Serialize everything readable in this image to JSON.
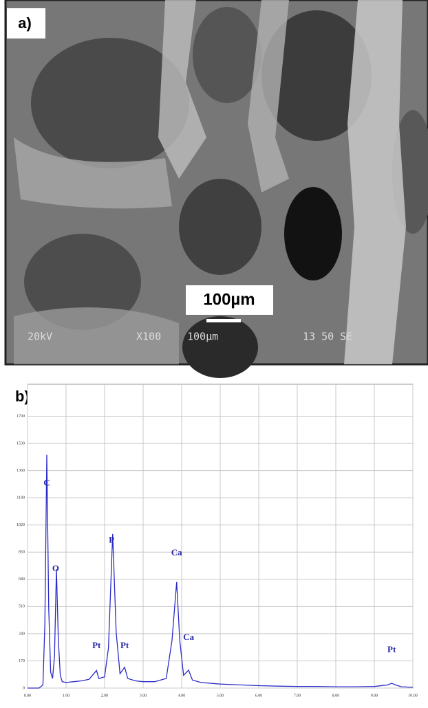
{
  "panel_a": {
    "label": "a)",
    "scale_bar": "100µm",
    "sem_info": [
      "20kV",
      "X100",
      "100µm",
      "13 50 SE"
    ]
  },
  "chart_data": {
    "type": "line",
    "panel_label": "b)",
    "x": [
      0.0,
      0.3,
      0.4,
      0.45,
      0.5,
      0.55,
      0.6,
      0.65,
      0.7,
      0.75,
      0.8,
      0.85,
      0.9,
      1.0,
      1.2,
      1.4,
      1.6,
      1.79,
      1.85,
      2.0,
      2.1,
      2.21,
      2.3,
      2.4,
      2.52,
      2.6,
      2.8,
      3.0,
      3.3,
      3.6,
      3.75,
      3.87,
      3.95,
      4.05,
      4.18,
      4.28,
      4.5,
      5.0,
      5.5,
      6.0,
      6.5,
      7.0,
      7.5,
      8.0,
      8.5,
      9.0,
      9.35,
      9.45,
      9.55,
      9.7,
      10.0
    ],
    "series": [
      {
        "color": "#2b2bc8",
        "values": [
          0,
          0,
          20,
          400,
          1459,
          500,
          100,
          60,
          200,
          744,
          300,
          80,
          40,
          35,
          40,
          45,
          55,
          110,
          60,
          70,
          250,
          964,
          350,
          90,
          130,
          60,
          45,
          40,
          40,
          60,
          300,
          663,
          300,
          80,
          112,
          50,
          35,
          25,
          20,
          15,
          12,
          10,
          10,
          8,
          8,
          10,
          20,
          30,
          20,
          8,
          5
        ]
      }
    ],
    "xlim": [
      0,
      10
    ],
    "ylim": [
      0,
      1900
    ],
    "xticks": [
      {
        "value": 0,
        "label": "0.00"
      },
      {
        "value": 1,
        "label": "1.00"
      },
      {
        "value": 2,
        "label": "2.00"
      },
      {
        "value": 3,
        "label": "3.00"
      },
      {
        "value": 4,
        "label": "4.00"
      },
      {
        "value": 5,
        "label": "5.00"
      },
      {
        "value": 6,
        "label": "6.00"
      },
      {
        "value": 7,
        "label": "7.00"
      },
      {
        "value": 8,
        "label": "8.00"
      },
      {
        "value": 9,
        "label": "9.00"
      },
      {
        "value": 10,
        "label": "10.00"
      }
    ],
    "yticks": [
      0,
      170,
      340,
      510,
      680,
      850,
      1020,
      1190,
      1360,
      1530,
      1700
    ],
    "grid": true,
    "annotations": [
      {
        "text": "C",
        "x": 0.5,
        "y": 1278
      },
      {
        "text": "O",
        "x": 0.73,
        "y": 744
      },
      {
        "text": "P",
        "x": 2.18,
        "y": 921
      },
      {
        "text": "Ca",
        "x": 3.87,
        "y": 843
      },
      {
        "text": "Ca",
        "x": 4.18,
        "y": 314
      },
      {
        "text": "Pt",
        "x": 1.79,
        "y": 262
      },
      {
        "text": "Pt",
        "x": 2.52,
        "y": 262
      },
      {
        "text": "Pt",
        "x": 9.45,
        "y": 237
      }
    ]
  }
}
